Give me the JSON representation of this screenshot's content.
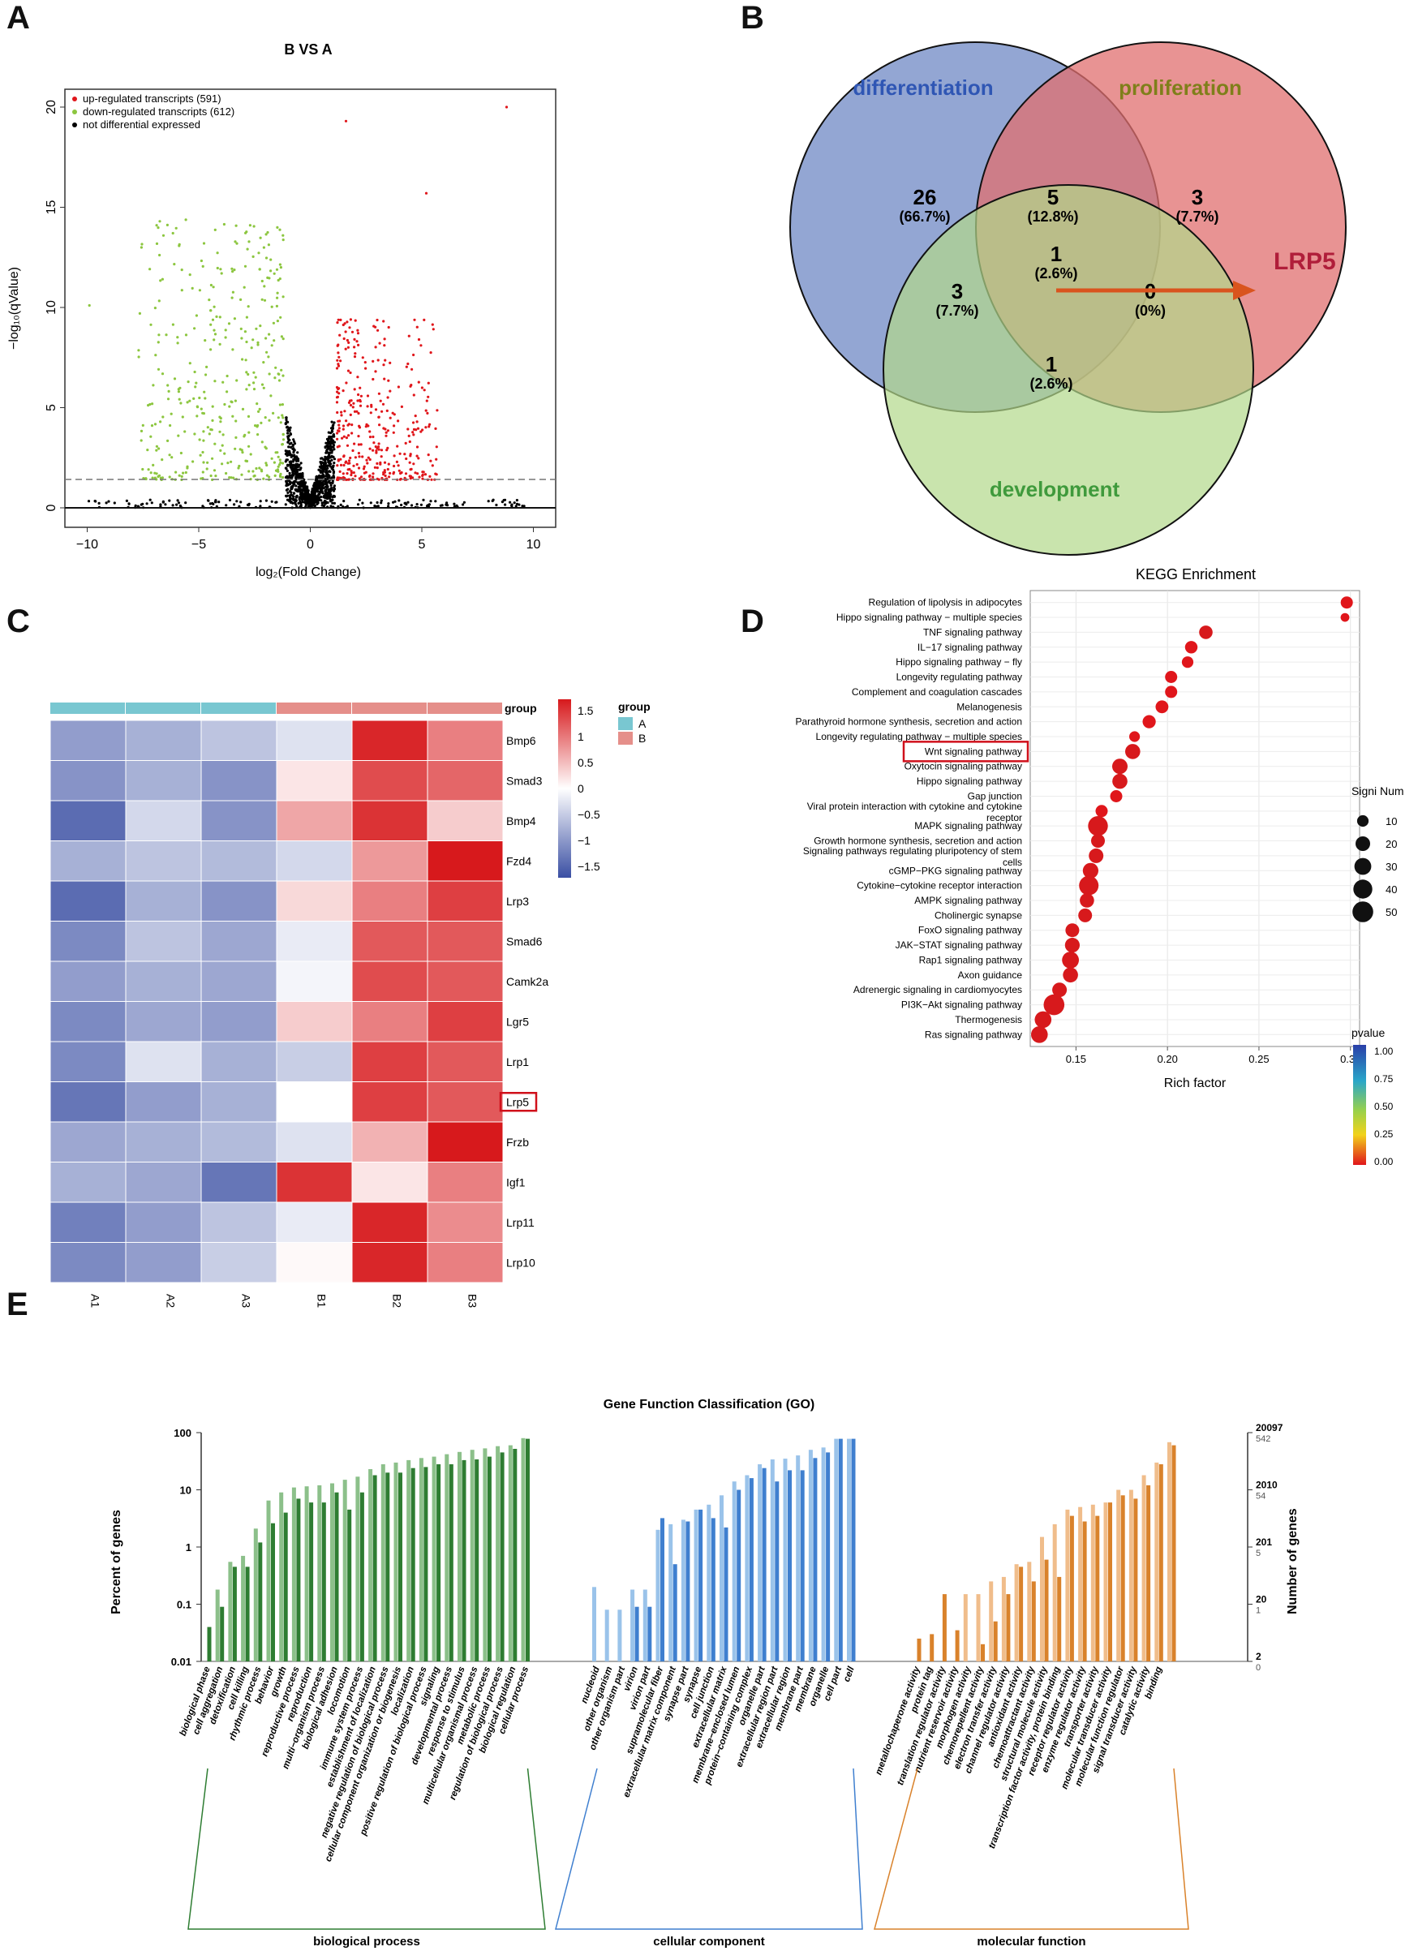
{
  "panel_labels": [
    "A",
    "B",
    "C",
    "D",
    "E"
  ],
  "volcano": {
    "title": "B VS A",
    "xlabel": "log₂(Fold Change)",
    "ylabel": "−log₁₀(qValue)",
    "xticks": [
      -10,
      -5,
      0,
      5,
      10
    ],
    "yticks": [
      0,
      5,
      10,
      15,
      20
    ],
    "legend": [
      {
        "label": "up-regulated transcripts (591)",
        "color": "#e0161b"
      },
      {
        "label": "down-regulated transcripts (612)",
        "color": "#8cc63f"
      },
      {
        "label": "not differential expressed",
        "color": "#000000"
      }
    ]
  },
  "venn": {
    "sets": [
      {
        "name": "differentiation",
        "color": "#2f56b4"
      },
      {
        "name": "proliferation",
        "color": "#7f7f1a"
      },
      {
        "name": "development",
        "color": "#3f9a3c"
      }
    ],
    "regions": [
      {
        "count": "26",
        "pct": "(66.7%)"
      },
      {
        "count": "5",
        "pct": "(12.8%)"
      },
      {
        "count": "3",
        "pct": "(7.7%)"
      },
      {
        "count": "1",
        "pct": "(2.6%)"
      },
      {
        "count": "3",
        "pct": "(7.7%)"
      },
      {
        "count": "0",
        "pct": "(0%)"
      },
      {
        "count": "1",
        "pct": "(2.6%)"
      }
    ],
    "callout": "LRP5"
  },
  "heatmap": {
    "columns": [
      "A1",
      "A2",
      "A3",
      "B1",
      "B2",
      "B3"
    ],
    "group_row_label": "group",
    "group_legend_title": "group",
    "groups": [
      {
        "name": "A",
        "color": "#79c7d1"
      },
      {
        "name": "B",
        "color": "#e58f8a"
      }
    ],
    "scale_ticks": [
      "1.5",
      "1",
      "0.5",
      "0",
      "−0.5",
      "−1",
      "−1.5"
    ],
    "highlight": "Lrp5",
    "rows": [
      {
        "gene": "Bmp6",
        "values": [
          -1.0,
          -0.8,
          -0.6,
          -0.3,
          1.7,
          1.0
        ]
      },
      {
        "gene": "Smad3",
        "values": [
          -1.1,
          -0.8,
          -1.1,
          0.2,
          1.4,
          1.2
        ]
      },
      {
        "gene": "Bmp4",
        "values": [
          -1.5,
          -0.4,
          -1.1,
          0.7,
          1.6,
          0.4
        ]
      },
      {
        "gene": "Fzd4",
        "values": [
          -0.8,
          -0.6,
          -0.7,
          -0.4,
          0.8,
          1.8
        ]
      },
      {
        "gene": "Lrp3",
        "values": [
          -1.5,
          -0.8,
          -1.1,
          0.3,
          1.0,
          1.5
        ]
      },
      {
        "gene": "Smad6",
        "values": [
          -1.2,
          -0.6,
          -0.9,
          -0.2,
          1.3,
          1.3
        ]
      },
      {
        "gene": "Camk2a",
        "values": [
          -1.0,
          -0.8,
          -0.9,
          -0.1,
          1.4,
          1.3
        ]
      },
      {
        "gene": "Lgr5",
        "values": [
          -1.2,
          -0.9,
          -1.0,
          0.4,
          1.0,
          1.5
        ]
      },
      {
        "gene": "Lrp1",
        "values": [
          -1.2,
          -0.3,
          -0.8,
          -0.5,
          1.5,
          1.3
        ]
      },
      {
        "gene": "Lrp5",
        "values": [
          -1.4,
          -1.0,
          -0.8,
          0.0,
          1.5,
          1.3
        ]
      },
      {
        "gene": "Frzb",
        "values": [
          -0.9,
          -0.8,
          -0.7,
          -0.3,
          0.6,
          1.9
        ]
      },
      {
        "gene": "Igf1",
        "values": [
          -0.8,
          -0.9,
          -1.4,
          1.6,
          0.2,
          1.0
        ]
      },
      {
        "gene": "Lrp11",
        "values": [
          -1.3,
          -1.0,
          -0.6,
          -0.2,
          1.7,
          0.9
        ]
      },
      {
        "gene": "Lrp10",
        "values": [
          -1.2,
          -1.0,
          -0.5,
          0.05,
          1.7,
          1.0
        ]
      }
    ]
  },
  "chart_data": [
    {
      "type": "bubble",
      "title": "KEGG Enrichment",
      "xlabel": "Rich factor",
      "xticks": [
        "0.15",
        "0.20",
        "0.25",
        "0.30"
      ],
      "xlim": [
        0.125,
        0.305
      ],
      "highlight": "Wnt signaling pathway",
      "size_legend_title": "Signi Num",
      "size_legend": [
        10,
        20,
        30,
        40,
        50
      ],
      "color_legend_title": "pvalue",
      "color_legend_ticks": [
        "1.00",
        "0.75",
        "0.50",
        "0.25",
        "0.00"
      ],
      "pathways": [
        {
          "name": "Regulation of lipolysis in adipocytes",
          "rich": 0.298,
          "num": 12
        },
        {
          "name": "Hippo signaling pathway − multiple species",
          "rich": 0.297,
          "num": 4
        },
        {
          "name": "TNF signaling pathway",
          "rich": 0.221,
          "num": 16
        },
        {
          "name": "IL−17 signaling pathway",
          "rich": 0.213,
          "num": 13
        },
        {
          "name": "Hippo signaling pathway − fly",
          "rich": 0.211,
          "num": 10
        },
        {
          "name": "Longevity regulating pathway",
          "rich": 0.202,
          "num": 12
        },
        {
          "name": "Complement and coagulation cascades",
          "rich": 0.202,
          "num": 12
        },
        {
          "name": "Melanogenesis",
          "rich": 0.197,
          "num": 14
        },
        {
          "name": "Parathyroid hormone synthesis, secretion and action",
          "rich": 0.19,
          "num": 15
        },
        {
          "name": "Longevity regulating pathway − multiple species",
          "rich": 0.182,
          "num": 8
        },
        {
          "name": "Wnt signaling pathway",
          "rich": 0.181,
          "num": 22
        },
        {
          "name": "Oxytocin signaling pathway",
          "rich": 0.174,
          "num": 23
        },
        {
          "name": "Hippo signaling pathway",
          "rich": 0.174,
          "num": 22
        },
        {
          "name": "Gap junction",
          "rich": 0.172,
          "num": 12
        },
        {
          "name": "Viral protein interaction with cytokine and cytokine receptor",
          "rich": 0.164,
          "num": 12
        },
        {
          "name": "MAPK signaling pathway",
          "rich": 0.162,
          "num": 45
        },
        {
          "name": "Growth hormone synthesis, secretion and action",
          "rich": 0.162,
          "num": 17
        },
        {
          "name": "Signaling pathways regulating pluripotency of stem cells",
          "rich": 0.161,
          "num": 20
        },
        {
          "name": "cGMP−PKG signaling pathway",
          "rich": 0.158,
          "num": 24
        },
        {
          "name": "Cytokine−cytokine receptor interaction",
          "rich": 0.157,
          "num": 43
        },
        {
          "name": "AMPK signaling pathway",
          "rich": 0.156,
          "num": 19
        },
        {
          "name": "Cholinergic synapse",
          "rich": 0.155,
          "num": 17
        },
        {
          "name": "FoxO signaling pathway",
          "rich": 0.148,
          "num": 17
        },
        {
          "name": "JAK−STAT signaling pathway",
          "rich": 0.148,
          "num": 21
        },
        {
          "name": "Rap1 signaling pathway",
          "rich": 0.147,
          "num": 30
        },
        {
          "name": "Axon guidance",
          "rich": 0.147,
          "num": 22
        },
        {
          "name": "Adrenergic signaling in cardiomyocytes",
          "rich": 0.141,
          "num": 20
        },
        {
          "name": "PI3K−Akt signaling pathway",
          "rich": 0.138,
          "num": 50
        },
        {
          "name": "Thermogenesis",
          "rich": 0.132,
          "num": 29
        },
        {
          "name": "Ras signaling pathway",
          "rich": 0.13,
          "num": 29
        }
      ]
    },
    {
      "type": "bar",
      "title": "Gene Function Classification (GO)",
      "ylabel": "Percent of genes",
      "y2label": "Number of genes",
      "yticks": [
        "100",
        "10",
        "1",
        "0.1",
        "0.01"
      ],
      "y2ticks": [
        [
          "20097",
          "542"
        ],
        [
          "2010",
          "54"
        ],
        [
          "201",
          "5"
        ],
        [
          "20",
          "1"
        ],
        [
          "2",
          "0"
        ]
      ],
      "scale": "log",
      "ylim": [
        0.01,
        100
      ],
      "categories": [
        {
          "name": "biological process",
          "light": "#8cc08a",
          "dark": "#2e7d32",
          "terms": [
            {
              "t": "biological phase",
              "a": 0,
              "b": 0.04
            },
            {
              "t": "cell aggregation",
              "a": 0.18,
              "b": 0.09
            },
            {
              "t": "detoxification",
              "a": 0.55,
              "b": 0.45
            },
            {
              "t": "cell killing",
              "a": 0.7,
              "b": 0.45
            },
            {
              "t": "rhythmic process",
              "a": 2.1,
              "b": 1.2
            },
            {
              "t": "behavior",
              "a": 6.5,
              "b": 2.6
            },
            {
              "t": "growth",
              "a": 9,
              "b": 4
            },
            {
              "t": "reproductive process",
              "a": 11,
              "b": 7
            },
            {
              "t": "reproduction",
              "a": 11.5,
              "b": 6
            },
            {
              "t": "multi−organism process",
              "a": 12,
              "b": 6
            },
            {
              "t": "biological adhesion",
              "a": 13,
              "b": 9
            },
            {
              "t": "locomotion",
              "a": 15,
              "b": 4.5
            },
            {
              "t": "immune system process",
              "a": 17,
              "b": 9
            },
            {
              "t": "establishment of localization",
              "a": 23,
              "b": 18
            },
            {
              "t": "negative regulation of biological process",
              "a": 28,
              "b": 20
            },
            {
              "t": "cellular component organization or biogenesis",
              "a": 30,
              "b": 20
            },
            {
              "t": "localization",
              "a": 33,
              "b": 24
            },
            {
              "t": "positive regulation of biological process",
              "a": 36,
              "b": 25
            },
            {
              "t": "signaling",
              "a": 38,
              "b": 28
            },
            {
              "t": "developmental process",
              "a": 42,
              "b": 28
            },
            {
              "t": "response to stimulus",
              "a": 46,
              "b": 33
            },
            {
              "t": "multicellular organismal process",
              "a": 50,
              "b": 34
            },
            {
              "t": "metabolic process",
              "a": 53,
              "b": 38
            },
            {
              "t": "regulation of biological process",
              "a": 58,
              "b": 45
            },
            {
              "t": "biological regulation",
              "a": 60,
              "b": 52
            },
            {
              "t": "cellular process",
              "a": 80,
              "b": 78
            }
          ]
        },
        {
          "name": "cellular component",
          "light": "#9ac3ea",
          "dark": "#3f7fcf",
          "terms": [
            {
              "t": "nucleoid",
              "a": 0.2,
              "b": 0
            },
            {
              "t": "other organism",
              "a": 0.08,
              "b": 0
            },
            {
              "t": "other organism part",
              "a": 0.08,
              "b": 0
            },
            {
              "t": "virion",
              "a": 0.18,
              "b": 0.09
            },
            {
              "t": "virion part",
              "a": 0.18,
              "b": 0.09
            },
            {
              "t": "supramolecular fiber",
              "a": 2,
              "b": 3.2
            },
            {
              "t": "extracellular matrix component",
              "a": 2.5,
              "b": 0.5
            },
            {
              "t": "synapse part",
              "a": 3,
              "b": 2.8
            },
            {
              "t": "synapse",
              "a": 4.5,
              "b": 4.5
            },
            {
              "t": "cell junction",
              "a": 5.5,
              "b": 3.2
            },
            {
              "t": "extracellular matrix",
              "a": 8,
              "b": 2.2
            },
            {
              "t": "membrane−enclosed lumen",
              "a": 14,
              "b": 10
            },
            {
              "t": "protein−containing complex",
              "a": 18,
              "b": 16
            },
            {
              "t": "organelle part",
              "a": 28,
              "b": 24
            },
            {
              "t": "extracellular region part",
              "a": 34,
              "b": 14
            },
            {
              "t": "extracellular region",
              "a": 35,
              "b": 22
            },
            {
              "t": "membrane part",
              "a": 40,
              "b": 22
            },
            {
              "t": "membrane",
              "a": 50,
              "b": 36
            },
            {
              "t": "organelle",
              "a": 55,
              "b": 45
            },
            {
              "t": "cell part",
              "a": 78,
              "b": 78
            },
            {
              "t": "cell",
              "a": 78,
              "b": 78
            }
          ]
        },
        {
          "name": "molecular function",
          "light": "#f0bd8b",
          "dark": "#d9822b",
          "terms": [
            {
              "t": "metallochaperone activity",
              "a": 0,
              "b": 0.025
            },
            {
              "t": "protein tag",
              "a": 0,
              "b": 0.03
            },
            {
              "t": "translation regulator activity",
              "a": 0,
              "b": 0.15
            },
            {
              "t": "nutrient reservoir activity",
              "a": 0,
              "b": 0.035
            },
            {
              "t": "morphogen activity",
              "a": 0.15,
              "b": 0
            },
            {
              "t": "chemorepellent activity",
              "a": 0.15,
              "b": 0.02
            },
            {
              "t": "electron transfer activity",
              "a": 0.25,
              "b": 0.05
            },
            {
              "t": "channel regulator activity",
              "a": 0.3,
              "b": 0.15
            },
            {
              "t": "antioxidant activity",
              "a": 0.5,
              "b": 0.45
            },
            {
              "t": "chemoattractant activity",
              "a": 0.55,
              "b": 0.25
            },
            {
              "t": "structural molecule activity",
              "a": 1.5,
              "b": 0.6
            },
            {
              "t": "transcription factor activity, protein binding",
              "a": 2.5,
              "b": 0.3
            },
            {
              "t": "receptor regulator activity",
              "a": 4.5,
              "b": 3.5
            },
            {
              "t": "enzyme regulator activity",
              "a": 5,
              "b": 2.8
            },
            {
              "t": "transporter activity",
              "a": 5.5,
              "b": 3.5
            },
            {
              "t": "molecular transducer activity",
              "a": 6,
              "b": 6
            },
            {
              "t": "molecular function regulator",
              "a": 10,
              "b": 8
            },
            {
              "t": "signal transducer activity",
              "a": 10,
              "b": 7
            },
            {
              "t": "catalytic activity",
              "a": 18,
              "b": 12
            },
            {
              "t": "binding",
              "a": 30,
              "b": 28
            },
            {
              "t": "",
              "a": 68,
              "b": 60
            }
          ]
        }
      ]
    }
  ]
}
